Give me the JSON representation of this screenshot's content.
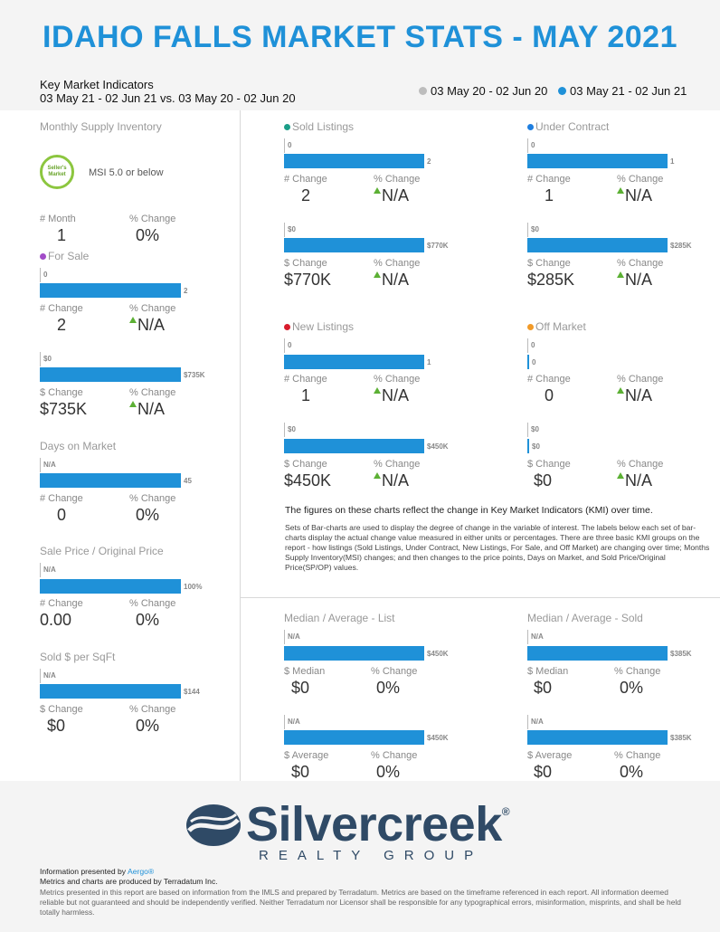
{
  "header": {
    "title": "IDAHO FALLS MARKET STATS - MAY 2021",
    "kmi_title": "Key Market Indicators",
    "kmi_range": "03 May 21 - 02 Jun 21 vs. 03 May 20 - 02 Jun 20",
    "legend_prev": "03 May 20 - 02 Jun 20",
    "legend_curr": "03 May 21 - 02 Jun 21",
    "prev_color": "#bdbdbd",
    "curr_color": "#1f91d8"
  },
  "left": {
    "msi": {
      "title": "Monthly Supply Inventory",
      "badge_line1": "Seller's",
      "badge_line2": "Market",
      "badge_text": "MSI 5.0 or below",
      "lbl_a": "# Month",
      "val_a": "1",
      "lbl_b": "% Change",
      "val_b": "0%"
    },
    "for_sale": {
      "title": "For Sale",
      "dot_color": "#a24cc8",
      "bar1_old": "0",
      "bar1_new": "2",
      "lbl1_a": "# Change",
      "val1_a": "2",
      "lbl1_b": "% Change",
      "val1_b": "N/A",
      "bar2_old": "$0",
      "bar2_new": "$735K",
      "lbl2_a": "$ Change",
      "val2_a": "$735K",
      "lbl2_b": "% Change",
      "val2_b": "N/A"
    },
    "dom": {
      "title": "Days on Market",
      "bar_old": "N/A",
      "bar_new": "45",
      "lbl_a": "# Change",
      "val_a": "0",
      "lbl_b": "% Change",
      "val_b": "0%"
    },
    "sp_op": {
      "title": "Sale Price / Original Price",
      "bar_old": "N/A",
      "bar_new": "100%",
      "lbl_a": "# Change",
      "val_a": "0.00",
      "lbl_b": "% Change",
      "val_b": "0%"
    },
    "sqft": {
      "title": "Sold $ per SqFt",
      "bar_old": "N/A",
      "bar_new": "$144",
      "lbl_a": "$ Change",
      "val_a": "$0",
      "lbl_b": "% Change",
      "val_b": "0%"
    }
  },
  "grid": {
    "sold": {
      "title": "Sold Listings",
      "dot_color": "#1b9e88",
      "bar1_old": "0",
      "bar1_new": "2",
      "lbl1_a": "# Change",
      "val1_a": "2",
      "lbl1_b": "% Change",
      "val1_b": "N/A",
      "bar2_old": "$0",
      "bar2_new": "$770K",
      "lbl2_a": "$ Change",
      "val2_a": "$770K",
      "lbl2_b": "% Change",
      "val2_b": "N/A"
    },
    "under_contract": {
      "title": "Under Contract",
      "dot_color": "#1f7fe0",
      "bar1_old": "0",
      "bar1_new": "1",
      "lbl1_a": "# Change",
      "val1_a": "1",
      "lbl1_b": "% Change",
      "val1_b": "N/A",
      "bar2_old": "$0",
      "bar2_new": "$285K",
      "lbl2_a": "$ Change",
      "val2_a": "$285K",
      "lbl2_b": "% Change",
      "val2_b": "N/A"
    },
    "new_listings": {
      "title": "New Listings",
      "dot_color": "#d81c2c",
      "bar1_old": "0",
      "bar1_new": "1",
      "lbl1_a": "# Change",
      "val1_a": "1",
      "lbl1_b": "% Change",
      "val1_b": "N/A",
      "bar2_old": "$0",
      "bar2_new": "$450K",
      "lbl2_a": "$ Change",
      "val2_a": "$450K",
      "lbl2_b": "% Change",
      "val2_b": "N/A"
    },
    "off_market": {
      "title": "Off Market",
      "dot_color": "#f19a28",
      "bar1_old": "0",
      "bar1_new": "0",
      "lbl1_a": "# Change",
      "val1_a": "0",
      "lbl1_b": "% Change",
      "val1_b": "N/A",
      "bar2_old": "$0",
      "bar2_new": "$0",
      "lbl2_a": "$ Change",
      "val2_a": "$0",
      "lbl2_b": "% Change",
      "val2_b": "N/A"
    },
    "note_main": "The figures on these charts reflect the change in Key Market Indicators (KMI) over time.",
    "note_detail": "Sets of Bar-charts are used to display the degree of change in the variable of interest. The labels below each set of bar-charts display the actual change value measured in either units or percentages. There are three basic KMI groups on the report - how listings (Sold Listings, Under Contract, New Listings, For Sale, and Off Market) are changing over time; Months Supply Inventory(MSI) changes; and then changes to the price points, Days on Market, and Sold Price/Original Price(SP/OP) values."
  },
  "medians": {
    "list": {
      "title": "Median / Average - List",
      "bar1_old": "N/A",
      "bar1_new": "$450K",
      "lbl1_a": "$ Median",
      "val1_a": "$0",
      "lbl1_b": "% Change",
      "val1_b": "0%",
      "bar2_old": "N/A",
      "bar2_new": "$450K",
      "lbl2_a": "$ Average",
      "val2_a": "$0",
      "lbl2_b": "% Change",
      "val2_b": "0%"
    },
    "sold": {
      "title": "Median / Average - Sold",
      "bar1_old": "N/A",
      "bar1_new": "$385K",
      "lbl1_a": "$ Median",
      "val1_a": "$0",
      "lbl1_b": "% Change",
      "val1_b": "0%",
      "bar2_old": "N/A",
      "bar2_new": "$385K",
      "lbl2_a": "$ Average",
      "val2_a": "$0",
      "lbl2_b": "% Change",
      "val2_b": "0%"
    }
  },
  "footer": {
    "logo_word": "Silvercreek",
    "logo_reg": "®",
    "logo_sub": "REALTY GROUP",
    "presented_prefix": "Information presented by ",
    "presented_link": "Aergo®",
    "produced": "Metrics and charts are produced by Terradatum Inc.",
    "disclaimer": "Metrics presented in this report are based on information from the IMLS and prepared by Terradatum. Metrics are based on the timeframe referenced in each report. All information deemed reliable but not guaranteed and should be independently verified. Neither Terradatum nor Licensor shall be responsible for any typographical errors, misinformation, misprints, and shall be held totally harmless."
  }
}
